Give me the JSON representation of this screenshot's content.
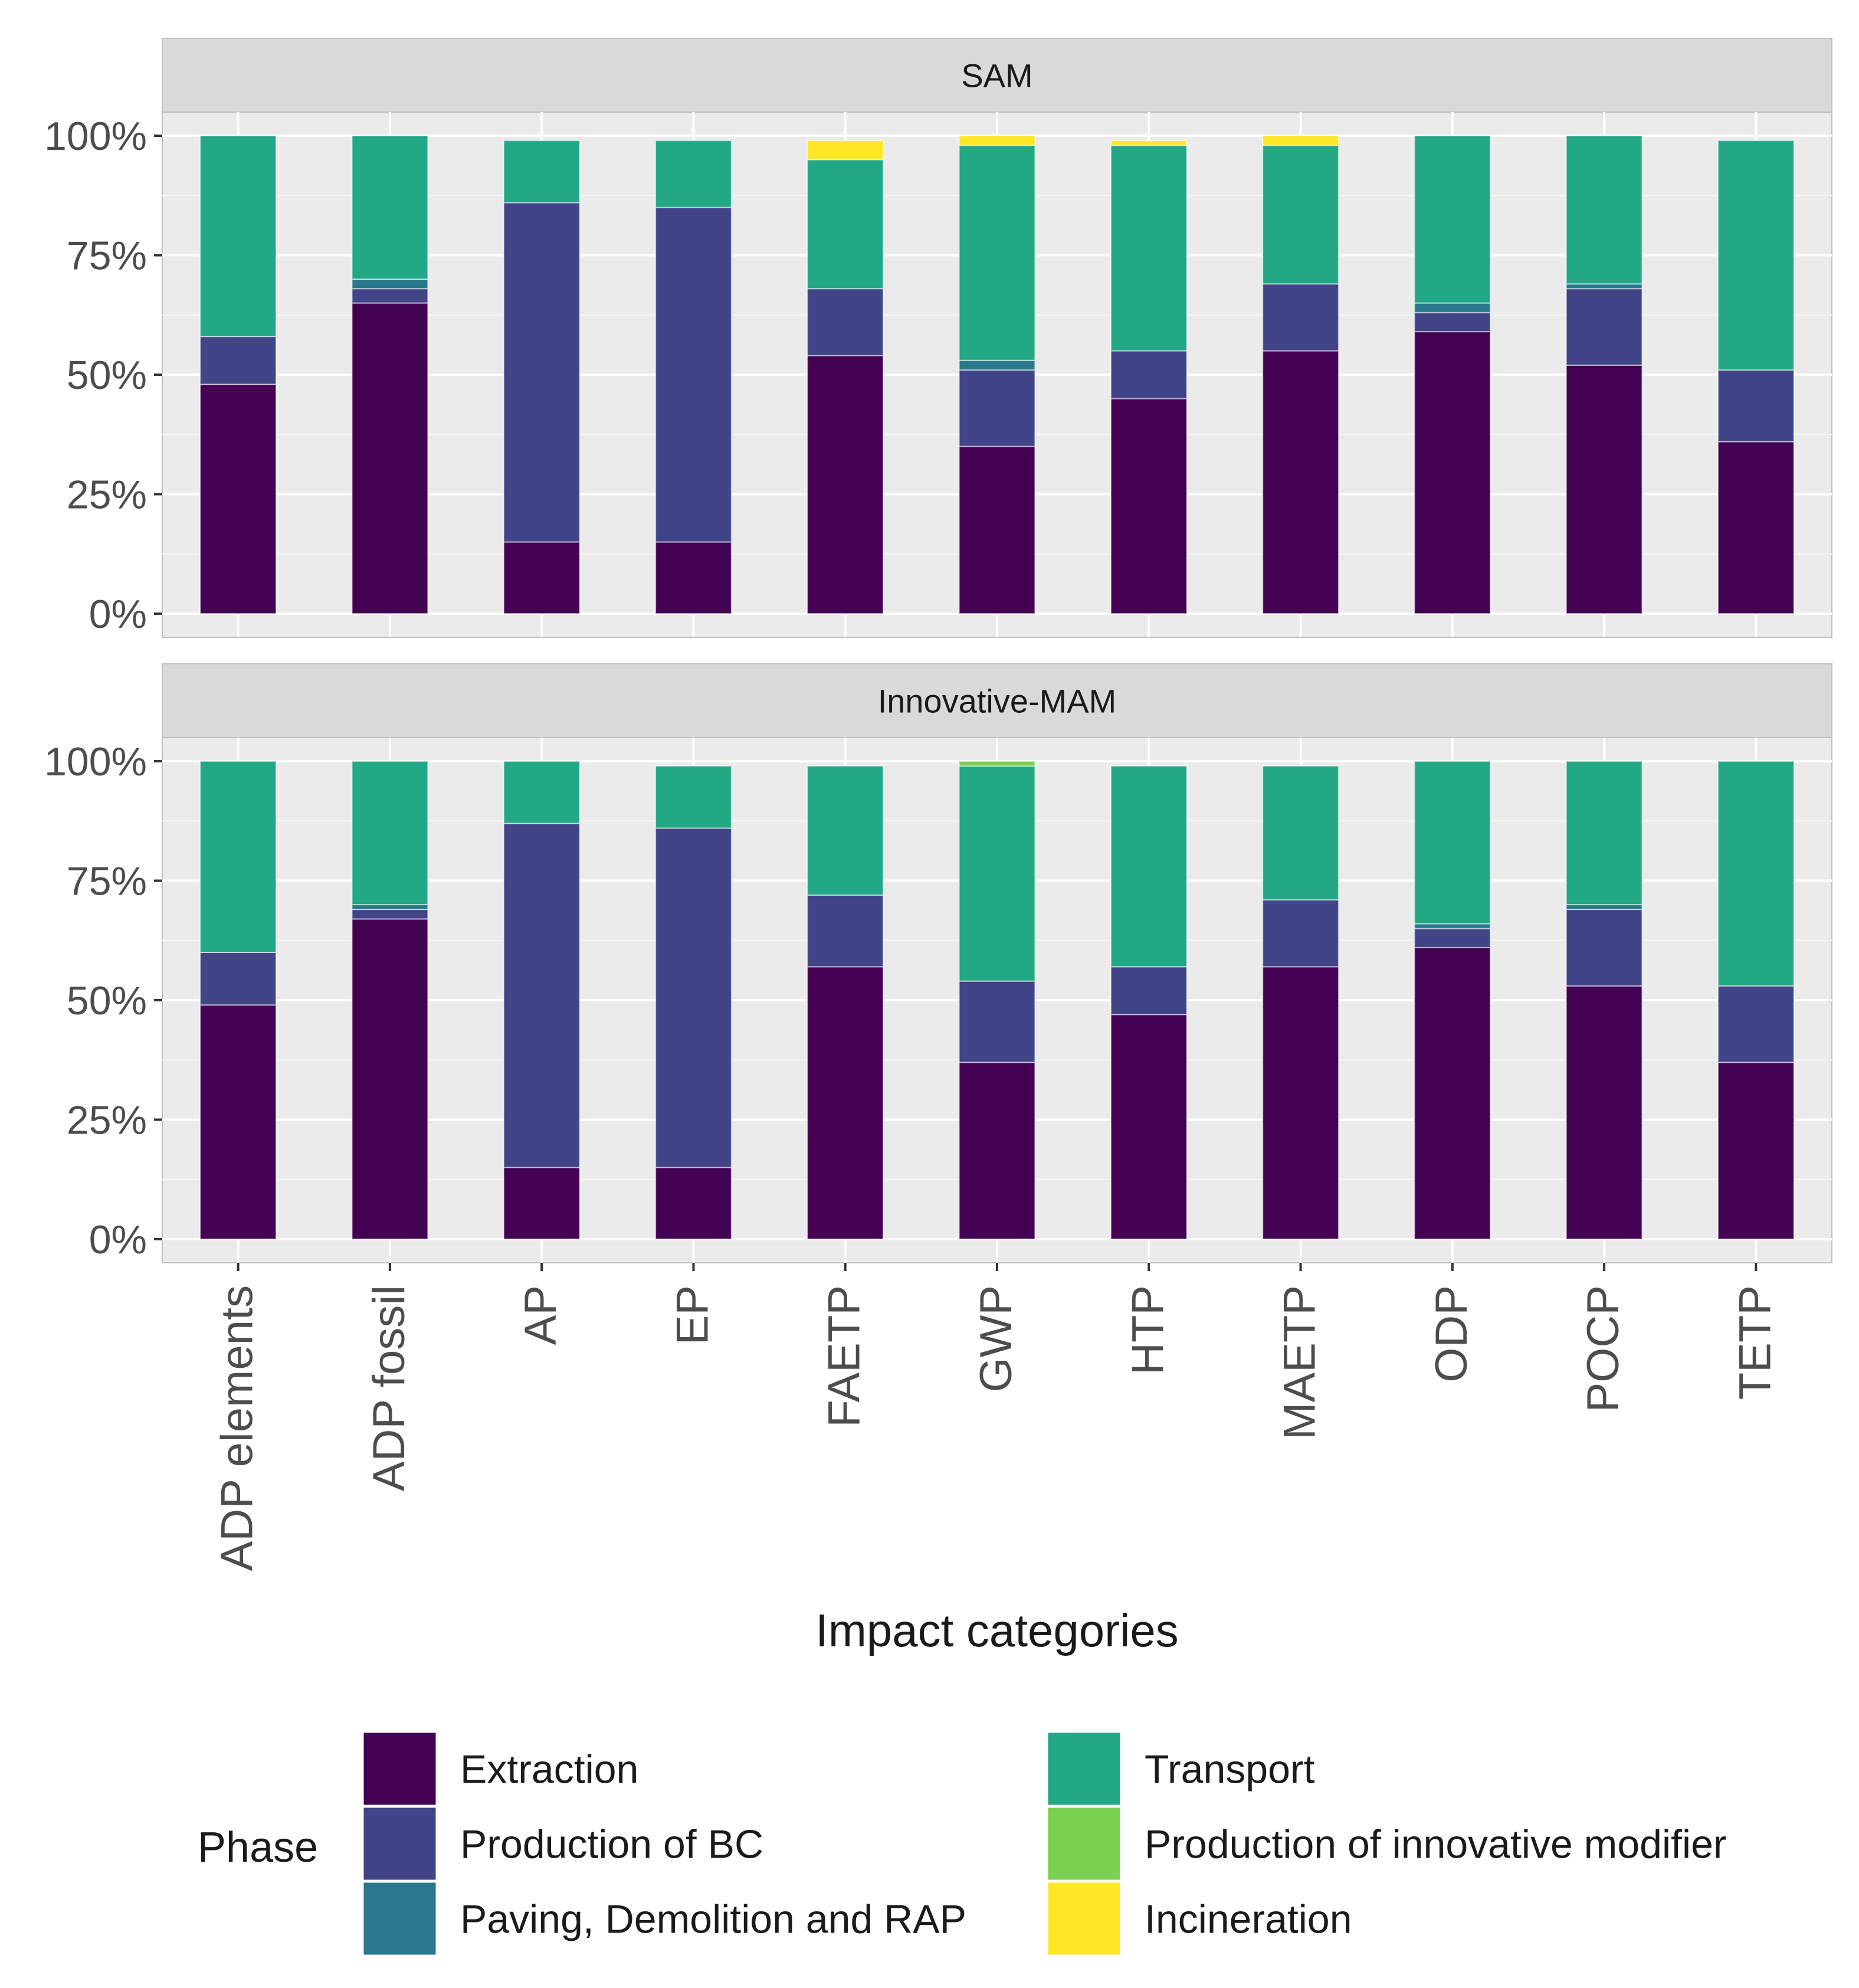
{
  "chart_data": {
    "type": "bar",
    "stacked": true,
    "xlabel": "Impact categories",
    "ylabel": "",
    "ylim": [
      0,
      1
    ],
    "yticks": [
      "0%",
      "25%",
      "50%",
      "75%",
      "100%"
    ],
    "categories": [
      "ADP elements",
      "ADP fossil",
      "AP",
      "EP",
      "FAETP",
      "GWP",
      "HTP",
      "MAETP",
      "ODP",
      "POCP",
      "TETP"
    ],
    "legend": {
      "title": "Phase",
      "placement": "bottom",
      "entries": [
        "Extraction",
        "Production of BC",
        "Paving, Demolition and RAP",
        "Transport",
        "Production of innovative modifier",
        "Incineration"
      ]
    },
    "colors": {
      "Extraction": "#440154",
      "Production of BC": "#414487",
      "Paving, Demolition and RAP": "#2A788E",
      "Transport": "#22A884",
      "Production of innovative modifier": "#7AD151",
      "Incineration": "#FDE725"
    },
    "panels": [
      {
        "title": "SAM",
        "series": [
          {
            "name": "Extraction",
            "values": [
              0.48,
              0.65,
              0.15,
              0.15,
              0.54,
              0.35,
              0.45,
              0.55,
              0.59,
              0.52,
              0.36
            ]
          },
          {
            "name": "Production of BC",
            "values": [
              0.1,
              0.03,
              0.71,
              0.7,
              0.14,
              0.16,
              0.1,
              0.14,
              0.04,
              0.16,
              0.15
            ]
          },
          {
            "name": "Paving, Demolition and RAP",
            "values": [
              0.0,
              0.02,
              0.0,
              0.0,
              0.0,
              0.02,
              0.0,
              0.0,
              0.02,
              0.01,
              0.0
            ]
          },
          {
            "name": "Transport",
            "values": [
              0.42,
              0.3,
              0.13,
              0.14,
              0.27,
              0.45,
              0.43,
              0.29,
              0.35,
              0.31,
              0.48
            ]
          },
          {
            "name": "Production of innovative modifier",
            "values": [
              0,
              0,
              0,
              0,
              0,
              0,
              0,
              0,
              0,
              0,
              0
            ]
          },
          {
            "name": "Incineration",
            "values": [
              0.0,
              0.0,
              0.0,
              0.0,
              0.04,
              0.02,
              0.01,
              0.02,
              0.0,
              0.0,
              0.0
            ]
          }
        ]
      },
      {
        "title": "Innovative-MAM",
        "series": [
          {
            "name": "Extraction",
            "values": [
              0.49,
              0.67,
              0.15,
              0.15,
              0.57,
              0.37,
              0.47,
              0.57,
              0.61,
              0.53,
              0.37
            ]
          },
          {
            "name": "Production of BC",
            "values": [
              0.11,
              0.02,
              0.72,
              0.71,
              0.15,
              0.17,
              0.1,
              0.14,
              0.04,
              0.16,
              0.16
            ]
          },
          {
            "name": "Paving, Demolition and RAP",
            "values": [
              0.0,
              0.01,
              0.0,
              0.0,
              0.0,
              0.0,
              0.0,
              0.0,
              0.01,
              0.01,
              0.0
            ]
          },
          {
            "name": "Transport",
            "values": [
              0.4,
              0.3,
              0.13,
              0.13,
              0.27,
              0.45,
              0.42,
              0.28,
              0.34,
              0.3,
              0.47
            ]
          },
          {
            "name": "Production of innovative modifier",
            "values": [
              0.0,
              0.0,
              0.0,
              0.0,
              0.0,
              0.01,
              0.0,
              0.0,
              0.0,
              0.0,
              0.0
            ]
          },
          {
            "name": "Incineration",
            "values": [
              0,
              0,
              0,
              0,
              0,
              0,
              0,
              0,
              0,
              0,
              0
            ]
          }
        ]
      }
    ]
  }
}
